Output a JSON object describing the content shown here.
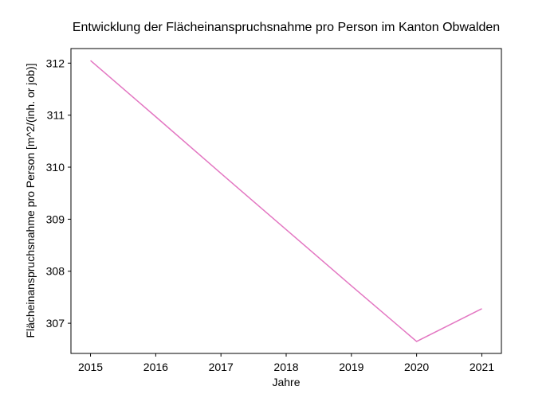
{
  "chart_data": {
    "type": "line",
    "title": "Entwicklung der Flächeinanspruchsnahme pro Person im Kanton Obwalden",
    "xlabel": "Jahre",
    "ylabel": "Flächeinanspruchsnahme pro Person [m^2/(inh. or job)]",
    "x": [
      2015,
      2016,
      2017,
      2018,
      2019,
      2020,
      2021
    ],
    "series": [
      {
        "values": [
          312.05,
          310.97,
          309.88,
          308.8,
          307.72,
          306.65,
          307.28
        ],
        "color": "#e377c2"
      }
    ],
    "xticks": [
      "2015",
      "2016",
      "2017",
      "2018",
      "2019",
      "2020",
      "2021"
    ],
    "yticks": [
      "307",
      "308",
      "309",
      "310",
      "311",
      "312"
    ],
    "xlim": [
      2014.7,
      2021.3
    ],
    "ylim": [
      306.42,
      312.28
    ],
    "grid": false,
    "legend": false
  }
}
